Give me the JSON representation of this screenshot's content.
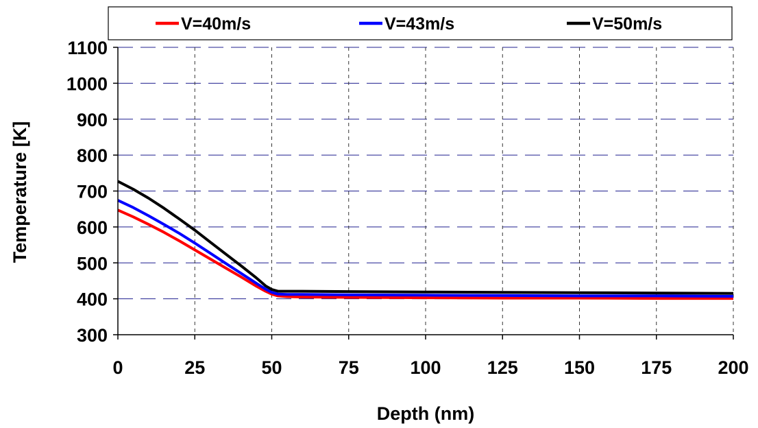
{
  "chart_data": {
    "type": "line",
    "xlabel": "Depth (nm)",
    "ylabel": "Temperature [K]",
    "xlim": [
      0,
      200
    ],
    "ylim": [
      300,
      1100
    ],
    "xticks": [
      0,
      25,
      50,
      75,
      100,
      125,
      150,
      175,
      200
    ],
    "yticks": [
      300,
      400,
      500,
      600,
      700,
      800,
      900,
      1000,
      1100
    ],
    "grid": true,
    "legend_position": "top",
    "series": [
      {
        "name": "V=40m/s",
        "color": "#ff0000",
        "x": [
          0,
          5,
          10,
          15,
          20,
          25,
          30,
          35,
          40,
          45,
          48,
          50,
          52,
          55,
          60,
          75,
          100,
          125,
          150,
          175,
          200
        ],
        "y": [
          647,
          628,
          607,
          585,
          561,
          536,
          511,
          486,
          461,
          435,
          421,
          413,
          408,
          406,
          405,
          404,
          403,
          402,
          402,
          401,
          401
        ]
      },
      {
        "name": "V=43m/s",
        "color": "#0000ff",
        "x": [
          0,
          5,
          10,
          15,
          20,
          25,
          30,
          35,
          40,
          45,
          48,
          50,
          52,
          55,
          60,
          75,
          100,
          125,
          150,
          175,
          200
        ],
        "y": [
          674,
          654,
          631,
          607,
          582,
          555,
          527,
          499,
          471,
          443,
          427,
          418,
          413,
          412,
          412,
          411,
          410,
          409,
          408,
          408,
          407
        ]
      },
      {
        "name": "V=50m/s",
        "color": "#000000",
        "x": [
          0,
          5,
          10,
          15,
          20,
          25,
          30,
          35,
          40,
          45,
          48,
          50,
          52,
          55,
          60,
          75,
          100,
          125,
          150,
          175,
          200
        ],
        "y": [
          727,
          705,
          680,
          652,
          622,
          591,
          558,
          525,
          492,
          458,
          436,
          426,
          421,
          421,
          421,
          420,
          419,
          418,
          417,
          416,
          415
        ]
      }
    ]
  }
}
